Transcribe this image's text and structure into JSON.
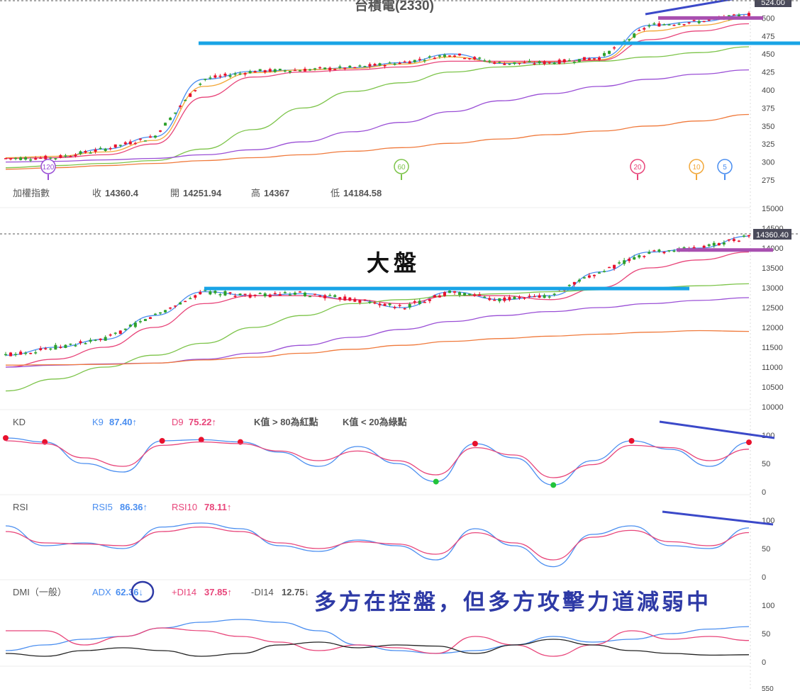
{
  "colors": {
    "up": "#e8112d",
    "down": "#2ca02c",
    "ma5": "#4a8ef0",
    "ma10": "#f2a83a",
    "ma20": "#e8457a",
    "ma60": "#7dc44a",
    "ma120": "#9a4fd6",
    "ma240": "#f07a3c",
    "support": "#19a4e6",
    "resist": "#a84fb0",
    "diverge": "#3b49c9",
    "k_line": "#4a8ef0",
    "d_line": "#e8457a",
    "dmi_plus": "#e8457a",
    "dmi_minus": "#222222",
    "adx": "#4a8ef0",
    "annot": "#2e3aa6"
  },
  "stock": {
    "title": "台積電(2330)",
    "price_label": "524.00",
    "y_ticks": [
      "500",
      "475",
      "450",
      "425",
      "400",
      "375",
      "350",
      "325",
      "300",
      "275"
    ],
    "ma_badges": [
      "120",
      "60",
      "20",
      "10",
      "5"
    ]
  },
  "index": {
    "name": "加權指數",
    "close_label": "收",
    "close": "14360.4",
    "open_label": "開",
    "open": "14251.94",
    "high_label": "高",
    "high": "14367",
    "low_label": "低",
    "low": "14184.58",
    "price_label": "14360.40",
    "caption": "大盤",
    "y_ticks": [
      "15000",
      "14500",
      "14000",
      "13500",
      "13000",
      "12500",
      "12000",
      "11500",
      "11000",
      "10500",
      "10000"
    ]
  },
  "kd": {
    "name": "KD",
    "k_label": "K9",
    "k_value": "87.40↑",
    "d_label": "D9",
    "d_value": "75.22↑",
    "note_red": "K值 > 80為紅點",
    "note_green": "K值 < 20為綠點",
    "y_ticks": [
      "100",
      "50",
      "0"
    ]
  },
  "rsi": {
    "name": "RSI",
    "rsi5_label": "RSI5",
    "rsi5_value": "86.36↑",
    "rsi10_label": "RSI10",
    "rsi10_value": "78.11↑",
    "y_ticks": [
      "100",
      "50",
      "0"
    ]
  },
  "dmi": {
    "name": "DMI（一般）",
    "adx_label": "ADX",
    "adx_value": "62.36↓",
    "pdi_label": "+DI14",
    "pdi_value": "37.85↑",
    "mdi_label": "-DI14",
    "mdi_value": "12.75↓",
    "y_ticks": [
      "100",
      "50",
      "0"
    ],
    "bottom_tick": "550"
  },
  "annotation": "多方在控盤，但多方攻擊力道減弱中",
  "chart_data": [
    {
      "type": "line",
      "title": "台積電(2330)",
      "ylim": [
        275,
        525
      ],
      "last_price": 524.0,
      "ma_series": [
        {
          "name": "5",
          "values": [
            305,
            306,
            318,
            335,
            415,
            426,
            428,
            431,
            438,
            450,
            437,
            438,
            445,
            490,
            495,
            505
          ]
        },
        {
          "name": "10",
          "values": [
            306,
            308,
            314,
            330,
            405,
            424,
            428,
            430,
            436,
            446,
            438,
            439,
            442,
            482,
            490,
            500
          ]
        },
        {
          "name": "20",
          "values": [
            305,
            306,
            310,
            325,
            390,
            418,
            425,
            428,
            432,
            440,
            440,
            440,
            441,
            470,
            482,
            492
          ]
        },
        {
          "name": "60",
          "values": [
            292,
            295,
            298,
            302,
            318,
            345,
            375,
            398,
            410,
            425,
            432,
            436,
            440,
            446,
            452,
            460
          ]
        },
        {
          "name": "120",
          "values": [
            300,
            301,
            303,
            305,
            310,
            317,
            328,
            342,
            355,
            370,
            385,
            395,
            405,
            415,
            422,
            428
          ]
        },
        {
          "name": "240",
          "values": [
            290,
            292,
            295,
            298,
            302,
            306,
            310,
            315,
            320,
            326,
            332,
            338,
            343,
            350,
            357,
            366
          ]
        }
      ],
      "support_level": 465,
      "resistance_level": 500
    },
    {
      "type": "line",
      "title": "加權指數",
      "ylim": [
        10000,
        15000
      ],
      "last_price": 14360.4,
      "ma_series": [
        {
          "name": "5",
          "values": [
            11300,
            11500,
            11700,
            12300,
            12900,
            12800,
            12850,
            12700,
            12500,
            12900,
            12700,
            12800,
            13400,
            13900,
            14000,
            14300
          ]
        },
        {
          "name": "20",
          "values": [
            11000,
            11200,
            11500,
            12000,
            12600,
            12800,
            12800,
            12700,
            12600,
            12800,
            12800,
            12700,
            13000,
            13500,
            13700,
            13900
          ]
        },
        {
          "name": "60",
          "values": [
            10400,
            10700,
            11000,
            11300,
            11600,
            12000,
            12300,
            12600,
            12700,
            12800,
            12850,
            12900,
            12950,
            13000,
            13050,
            13100
          ]
        },
        {
          "name": "120",
          "values": [
            11000,
            11050,
            11080,
            11100,
            11200,
            11350,
            11550,
            11750,
            11950,
            12150,
            12300,
            12400,
            12500,
            12600,
            12680,
            12750
          ]
        },
        {
          "name": "240",
          "values": [
            11050,
            11060,
            11070,
            11100,
            11180,
            11250,
            11350,
            11450,
            11550,
            11650,
            11720,
            11780,
            11830,
            11880,
            11920,
            11900
          ]
        }
      ],
      "support_level": 12980,
      "resistance_level": 13950
    },
    {
      "type": "line",
      "title": "KD",
      "ylim": [
        0,
        100
      ],
      "series": [
        {
          "name": "K9",
          "values": [
            95,
            88,
            50,
            35,
            90,
            92,
            88,
            70,
            45,
            80,
            50,
            18,
            85,
            60,
            12,
            55,
            90,
            75,
            45,
            87.4
          ]
        },
        {
          "name": "D9",
          "values": [
            90,
            85,
            60,
            45,
            82,
            88,
            85,
            72,
            55,
            72,
            55,
            30,
            78,
            65,
            25,
            48,
            82,
            78,
            55,
            75.22
          ]
        }
      ]
    },
    {
      "type": "line",
      "title": "RSI",
      "ylim": [
        0,
        100
      ],
      "series": [
        {
          "name": "RSI5",
          "values": [
            90,
            55,
            60,
            50,
            88,
            95,
            85,
            55,
            45,
            65,
            55,
            30,
            85,
            55,
            18,
            75,
            90,
            55,
            50,
            86.36
          ]
        },
        {
          "name": "RSI10",
          "values": [
            80,
            60,
            58,
            55,
            80,
            88,
            80,
            60,
            50,
            62,
            58,
            40,
            78,
            60,
            30,
            70,
            82,
            62,
            55,
            78.11
          ]
        }
      ]
    },
    {
      "type": "line",
      "title": "DMI（一般）",
      "ylim": [
        0,
        100
      ],
      "series": [
        {
          "name": "ADX",
          "values": [
            20,
            30,
            40,
            45,
            60,
            70,
            75,
            70,
            55,
            30,
            20,
            15,
            20,
            30,
            45,
            35,
            40,
            50,
            58,
            62.36
          ]
        },
        {
          "name": "+DI14",
          "values": [
            55,
            55,
            30,
            45,
            60,
            55,
            45,
            35,
            20,
            30,
            25,
            15,
            45,
            30,
            10,
            30,
            55,
            40,
            45,
            37.85
          ]
        },
        {
          "name": "-DI14",
          "values": [
            15,
            10,
            20,
            25,
            20,
            10,
            15,
            30,
            35,
            25,
            30,
            28,
            15,
            30,
            40,
            30,
            20,
            15,
            12,
            12.75
          ]
        }
      ]
    }
  ]
}
